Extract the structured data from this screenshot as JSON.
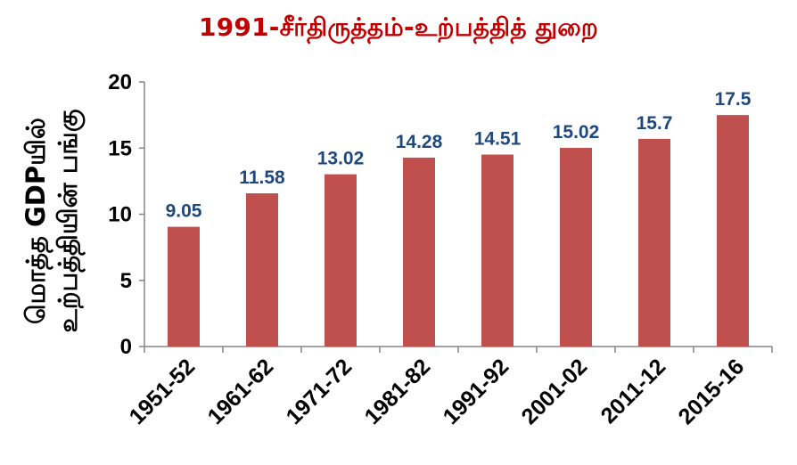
{
  "chart_data": {
    "type": "bar",
    "title": "1991-சீர்திருத்தம்-உற்பத்தித் துறை",
    "ylabel_lines": [
      "மொத்த GDPயில்",
      "உற்பத்தியின் பங்கு"
    ],
    "xlabel": "",
    "categories": [
      "1951-52",
      "1961-62",
      "1971-72",
      "1981-82",
      "1991-92",
      "2001-02",
      "2011-12",
      "2015-16"
    ],
    "values": [
      9.05,
      11.58,
      13.02,
      14.28,
      14.51,
      15.02,
      15.7,
      17.5
    ],
    "data_labels": [
      "9.05",
      "11.58",
      "13.02",
      "14.28",
      "14.51",
      "15.02",
      "15.7",
      "17.5"
    ],
    "ylim": [
      0,
      20
    ],
    "yticks": [
      "0",
      "5",
      "10",
      "15",
      "20"
    ],
    "grid": false,
    "legend": "none",
    "colors": {
      "title": "#C00000",
      "bar": "#C0504D",
      "data_label": "#1F497D",
      "axis": "#868686"
    }
  }
}
